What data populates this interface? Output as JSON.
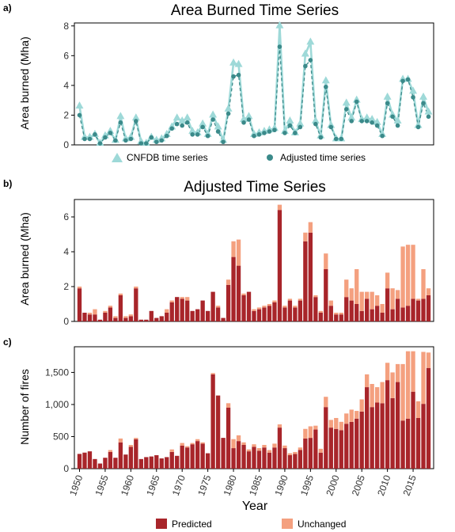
{
  "colors": {
    "cnfdb": "#9ed9d8",
    "adjusted": "#3b8a8a",
    "predicted": "#a8252a",
    "unchanged": "#f4a07f",
    "axis": "#000000"
  },
  "chart_data": [
    {
      "panel_label": "a)",
      "type": "line",
      "title": "Area Burned Time Series",
      "ylabel": "Area burned (Mha)",
      "xlabel": "",
      "ylim": [
        0,
        8.2
      ],
      "yticks": [
        0,
        2,
        4,
        6,
        8
      ],
      "x": [
        1950,
        1951,
        1952,
        1953,
        1954,
        1955,
        1956,
        1957,
        1958,
        1959,
        1960,
        1961,
        1962,
        1963,
        1964,
        1965,
        1966,
        1967,
        1968,
        1969,
        1970,
        1971,
        1972,
        1973,
        1974,
        1975,
        1976,
        1977,
        1978,
        1979,
        1980,
        1981,
        1982,
        1983,
        1984,
        1985,
        1986,
        1987,
        1988,
        1989,
        1990,
        1991,
        1992,
        1993,
        1994,
        1995,
        1996,
        1997,
        1998,
        1999,
        2000,
        2001,
        2002,
        2003,
        2004,
        2005,
        2006,
        2007,
        2008,
        2009,
        2010,
        2011,
        2012,
        2013,
        2014,
        2015,
        2016,
        2017,
        2018
      ],
      "series": [
        {
          "name": "CNFDB time series",
          "marker": "triangle",
          "values": [
            2.6,
            0.5,
            0.5,
            0.7,
            0.1,
            0.6,
            0.9,
            0.3,
            1.9,
            0.4,
            0.5,
            1.8,
            0.2,
            0.1,
            0.5,
            0.3,
            0.4,
            0.7,
            1.2,
            1.8,
            1.6,
            1.8,
            0.9,
            0.8,
            1.4,
            0.7,
            2.0,
            1.2,
            0.3,
            2.4,
            5.5,
            5.4,
            1.7,
            1.9,
            0.7,
            0.8,
            0.9,
            1.0,
            1.1,
            8.0,
            0.9,
            1.6,
            0.8,
            1.4,
            6.1,
            6.9,
            1.6,
            0.6,
            4.3,
            1.3,
            0.4,
            0.4,
            2.8,
            1.8,
            3.0,
            1.7,
            1.8,
            1.7,
            1.5,
            0.7,
            3.2,
            2.0,
            1.6,
            4.4,
            4.4,
            3.6,
            1.3,
            3.2,
            2.2
          ]
        },
        {
          "name": "Adjusted time series",
          "marker": "circle",
          "values": [
            2.0,
            0.4,
            0.4,
            0.7,
            0.1,
            0.5,
            0.8,
            0.3,
            1.5,
            0.3,
            0.4,
            1.6,
            0.1,
            0.1,
            0.5,
            0.2,
            0.3,
            0.6,
            1.1,
            1.4,
            1.3,
            1.5,
            0.7,
            0.7,
            1.2,
            0.6,
            1.7,
            0.9,
            0.2,
            2.1,
            4.6,
            4.7,
            1.5,
            1.7,
            0.6,
            0.7,
            0.8,
            0.9,
            1.0,
            6.6,
            0.8,
            1.3,
            0.8,
            1.2,
            5.3,
            5.7,
            1.4,
            0.5,
            3.9,
            1.2,
            0.4,
            0.4,
            2.4,
            1.6,
            2.9,
            1.6,
            1.6,
            1.5,
            1.3,
            0.6,
            2.8,
            1.9,
            1.3,
            4.3,
            4.4,
            3.2,
            1.2,
            2.8,
            1.9
          ]
        }
      ],
      "legend": {
        "placement": "bottom",
        "entries": [
          "CNFDB time series",
          "Adjusted time series"
        ]
      }
    },
    {
      "panel_label": "b)",
      "type": "bar",
      "stacked": true,
      "title": "Adjusted Time Series",
      "ylabel": "Area burned (Mha)",
      "xlabel": "",
      "ylim": [
        0,
        7
      ],
      "yticks": [
        0,
        2,
        4,
        6
      ],
      "x": [
        1950,
        1951,
        1952,
        1953,
        1954,
        1955,
        1956,
        1957,
        1958,
        1959,
        1960,
        1961,
        1962,
        1963,
        1964,
        1965,
        1966,
        1967,
        1968,
        1969,
        1970,
        1971,
        1972,
        1973,
        1974,
        1975,
        1976,
        1977,
        1978,
        1979,
        1980,
        1981,
        1982,
        1983,
        1984,
        1985,
        1986,
        1987,
        1988,
        1989,
        1990,
        1991,
        1992,
        1993,
        1994,
        1995,
        1996,
        1997,
        1998,
        1999,
        2000,
        2001,
        2002,
        2003,
        2004,
        2005,
        2006,
        2007,
        2008,
        2009,
        2010,
        2011,
        2012,
        2013,
        2014,
        2015,
        2016,
        2017,
        2018
      ],
      "series": [
        {
          "name": "Predicted",
          "values": [
            1.9,
            0.5,
            0.4,
            0.4,
            0.1,
            0.5,
            0.8,
            0.2,
            1.5,
            0.2,
            0.3,
            1.9,
            0.1,
            0.1,
            0.6,
            0.2,
            0.3,
            0.5,
            1.1,
            1.4,
            1.3,
            1.2,
            0.6,
            0.7,
            1.2,
            0.6,
            1.7,
            0.8,
            0.2,
            2.1,
            3.7,
            3.2,
            1.5,
            1.7,
            0.6,
            0.7,
            0.8,
            0.9,
            1.1,
            6.4,
            0.8,
            1.2,
            0.8,
            1.2,
            4.6,
            5.1,
            1.4,
            0.5,
            3.0,
            0.9,
            0.4,
            0.4,
            1.4,
            1.2,
            1.0,
            0.6,
            1.3,
            0.7,
            0.9,
            0.5,
            1.9,
            0.7,
            1.3,
            0.8,
            0.9,
            1.3,
            1.2,
            1.3,
            1.5
          ]
        },
        {
          "name": "Unchanged",
          "values": [
            0.1,
            0.0,
            0.1,
            0.3,
            0.0,
            0.1,
            0.1,
            0.1,
            0.1,
            0.1,
            0.1,
            0.1,
            0.0,
            0.0,
            0.0,
            0.0,
            0.0,
            0.2,
            0.1,
            0.0,
            0.1,
            0.2,
            0.0,
            0.0,
            0.0,
            0.0,
            0.0,
            0.1,
            0.0,
            0.3,
            0.9,
            1.5,
            0.1,
            0.0,
            0.1,
            0.1,
            0.1,
            0.1,
            0.1,
            0.3,
            0.1,
            0.1,
            0.1,
            0.1,
            0.5,
            0.6,
            0.1,
            0.1,
            0.9,
            0.3,
            0.1,
            0.1,
            1.0,
            0.7,
            2.0,
            1.1,
            0.4,
            1.0,
            0.6,
            0.5,
            0.9,
            1.2,
            0.5,
            3.5,
            3.5,
            3.1,
            0.1,
            1.7,
            0.4
          ]
        }
      ],
      "legend": {
        "placement": "bottom",
        "entries": [
          "Predicted",
          "Unchanged"
        ]
      }
    },
    {
      "panel_label": "c)",
      "type": "bar",
      "stacked": true,
      "title": "",
      "ylabel": "Number of fires",
      "xlabel": "Year",
      "ylim": [
        0,
        1900
      ],
      "yticks": [
        0,
        500,
        1000,
        1500
      ],
      "ytick_labels": [
        "0",
        "500",
        "1,000",
        "1,500"
      ],
      "xticks": [
        1950,
        1955,
        1960,
        1965,
        1970,
        1975,
        1980,
        1985,
        1990,
        1995,
        2000,
        2005,
        2010,
        2015
      ],
      "x": [
        1950,
        1951,
        1952,
        1953,
        1954,
        1955,
        1956,
        1957,
        1958,
        1959,
        1960,
        1961,
        1962,
        1963,
        1964,
        1965,
        1966,
        1967,
        1968,
        1969,
        1970,
        1971,
        1972,
        1973,
        1974,
        1975,
        1976,
        1977,
        1978,
        1979,
        1980,
        1981,
        1982,
        1983,
        1984,
        1985,
        1986,
        1987,
        1988,
        1989,
        1990,
        1991,
        1992,
        1993,
        1994,
        1995,
        1996,
        1997,
        1998,
        1999,
        2000,
        2001,
        2002,
        2003,
        2004,
        2005,
        2006,
        2007,
        2008,
        2009,
        2010,
        2011,
        2012,
        2013,
        2014,
        2015,
        2016,
        2017,
        2018
      ],
      "series": [
        {
          "name": "Predicted",
          "values": [
            230,
            250,
            270,
            150,
            80,
            170,
            260,
            170,
            410,
            220,
            340,
            460,
            150,
            180,
            190,
            210,
            160,
            180,
            260,
            200,
            360,
            330,
            380,
            430,
            390,
            240,
            1470,
            1140,
            480,
            950,
            320,
            430,
            370,
            270,
            340,
            280,
            330,
            250,
            330,
            640,
            320,
            210,
            230,
            290,
            470,
            480,
            610,
            250,
            960,
            640,
            620,
            600,
            700,
            730,
            780,
            890,
            1270,
            960,
            1030,
            1020,
            1380,
            1100,
            1350,
            750,
            780,
            1200,
            790,
            1010,
            1570
          ]
        },
        {
          "name": "Unchanged",
          "values": [
            0,
            0,
            0,
            0,
            0,
            0,
            30,
            0,
            60,
            0,
            30,
            20,
            0,
            0,
            0,
            0,
            0,
            0,
            40,
            0,
            40,
            20,
            20,
            30,
            20,
            0,
            20,
            0,
            0,
            70,
            140,
            90,
            40,
            30,
            40,
            40,
            40,
            40,
            60,
            50,
            40,
            30,
            30,
            40,
            150,
            180,
            60,
            60,
            160,
            120,
            170,
            130,
            160,
            190,
            120,
            190,
            200,
            360,
            240,
            330,
            270,
            400,
            280,
            880,
            1050,
            630,
            260,
            810,
            240
          ]
        }
      ],
      "legend": {
        "placement": "bottom",
        "entries": [
          "Predicted",
          "Unchanged"
        ]
      }
    }
  ]
}
